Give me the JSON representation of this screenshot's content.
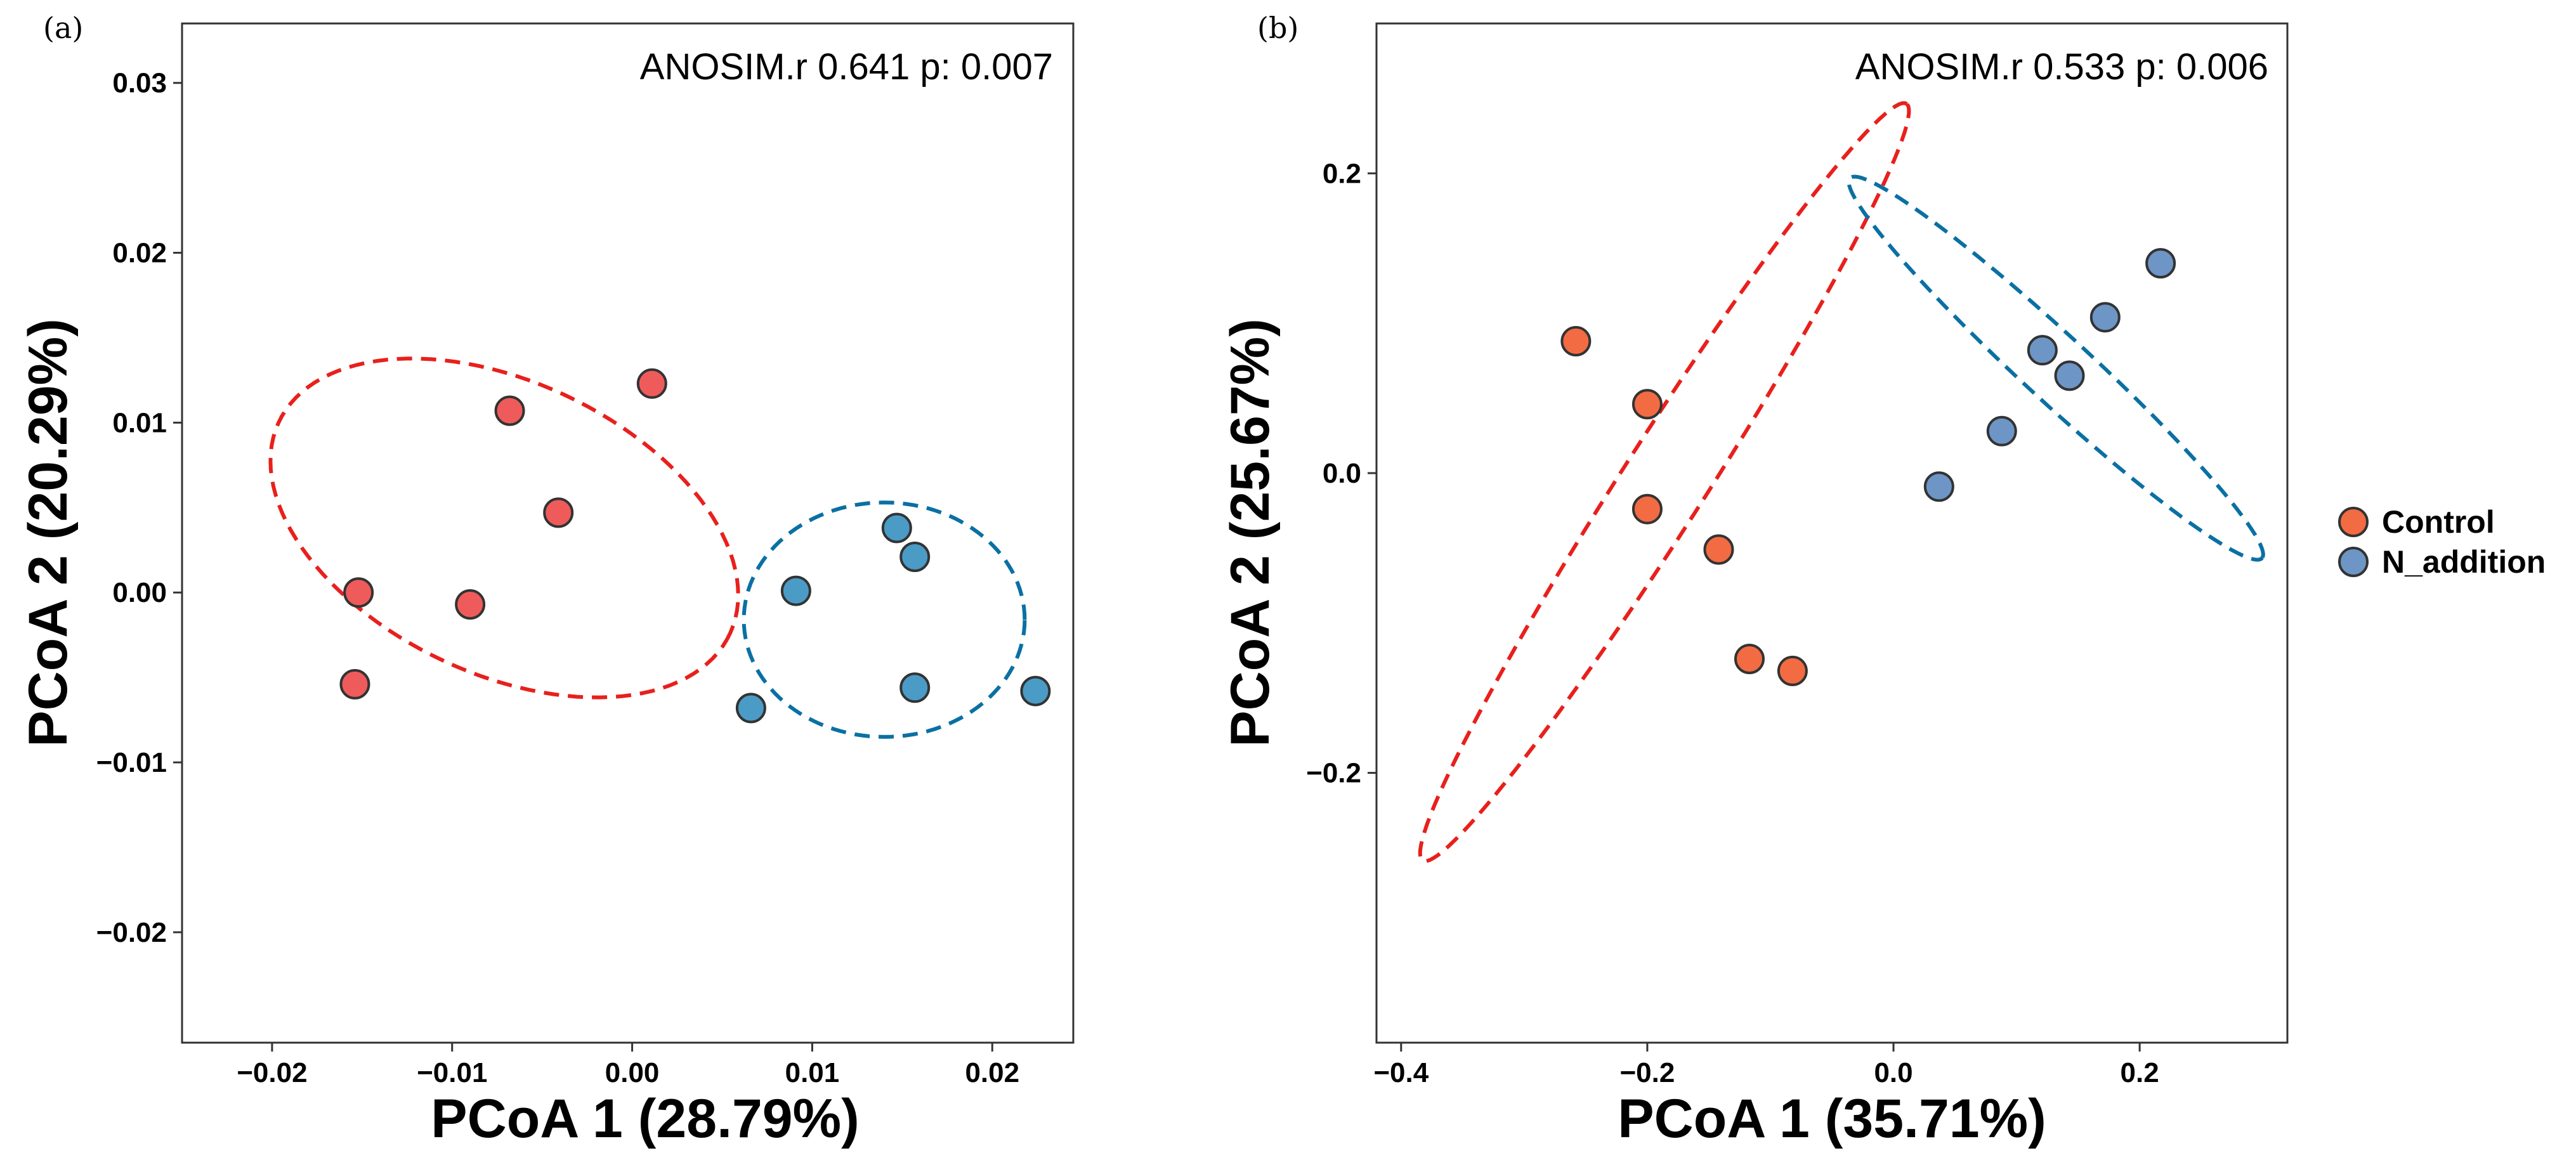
{
  "chart_data": [
    {
      "type": "scatter",
      "panel_label": "(a)",
      "annotation": "ANOSIM.r 0.641 p: 0.007",
      "xlabel": "PCoA 1 (28.79%)",
      "ylabel": "PCoA 2 (20.29%)",
      "xlim": [
        -0.025,
        0.0245
      ],
      "ylim": [
        -0.0265,
        0.0335
      ],
      "xticks": [
        -0.02,
        -0.01,
        0.0,
        0.01,
        0.02
      ],
      "xtick_labels": [
        "−0.02",
        "−0.01",
        "0.00",
        "0.01",
        "0.02"
      ],
      "yticks": [
        -0.02,
        -0.01,
        0.0,
        0.01,
        0.02,
        0.03
      ],
      "ytick_labels": [
        "−0.02",
        "−0.01",
        "0.00",
        "0.01",
        "0.02",
        "0.03"
      ],
      "grid": false,
      "series": [
        {
          "key": "control",
          "color": "#EF5B5B",
          "ellipse_color": "#E8201C",
          "points": [
            {
              "x": -0.0152,
              "y": 0.0
            },
            {
              "x": -0.0154,
              "y": -0.0054
            },
            {
              "x": -0.009,
              "y": -0.0007
            },
            {
              "x": -0.0068,
              "y": 0.0107
            },
            {
              "x": -0.0041,
              "y": 0.0047
            },
            {
              "x": 0.0011,
              "y": 0.0123
            }
          ]
        },
        {
          "key": "n_addition",
          "color": "#4A9BC6",
          "ellipse_color": "#0A70A3",
          "points": [
            {
              "x": 0.0066,
              "y": -0.0068
            },
            {
              "x": 0.0091,
              "y": 0.0001
            },
            {
              "x": 0.0147,
              "y": 0.0038
            },
            {
              "x": 0.0157,
              "y": 0.0021
            },
            {
              "x": 0.0157,
              "y": -0.0056
            },
            {
              "x": 0.0224,
              "y": -0.0058
            }
          ]
        }
      ]
    },
    {
      "type": "scatter",
      "panel_label": "(b)",
      "annotation": "ANOSIM.r 0.533 p: 0.006",
      "xlabel": "PCoA 1 (35.71%)",
      "ylabel": "PCoA 2 (25.67%)",
      "xlimit": [
        -0.42,
        0.32
      ],
      "ylim": [
        -0.38,
        0.3
      ],
      "xticks": [
        -0.4,
        -0.2,
        0.0,
        0.2
      ],
      "xtick_labels": [
        "−0.4",
        "−0.2",
        "0.0",
        "0.2"
      ],
      "yticks": [
        -0.2,
        0.0,
        0.2
      ],
      "ytick_labels": [
        "−0.2",
        "0.0",
        "0.2"
      ],
      "grid": false,
      "series": [
        {
          "key": "control",
          "color": "#F26B43",
          "ellipse_color": "#E8201C",
          "points": [
            {
              "x": -0.258,
              "y": 0.088
            },
            {
              "x": -0.2,
              "y": 0.046
            },
            {
              "x": -0.2,
              "y": -0.024
            },
            {
              "x": -0.142,
              "y": -0.051
            },
            {
              "x": -0.117,
              "y": -0.124
            },
            {
              "x": -0.082,
              "y": -0.132
            }
          ]
        },
        {
          "key": "n_addition",
          "color": "#6D95C6",
          "ellipse_color": "#0A70A3",
          "points": [
            {
              "x": 0.037,
              "y": -0.009
            },
            {
              "x": 0.088,
              "y": 0.028
            },
            {
              "x": 0.121,
              "y": 0.082
            },
            {
              "x": 0.143,
              "y": 0.065
            },
            {
              "x": 0.172,
              "y": 0.104
            },
            {
              "x": 0.217,
              "y": 0.14
            }
          ]
        }
      ]
    }
  ],
  "legend": {
    "placement": "right",
    "items": [
      {
        "label": "Control",
        "color": "#F26B43"
      },
      {
        "label": "N_addition",
        "color": "#6D95C6"
      }
    ]
  }
}
